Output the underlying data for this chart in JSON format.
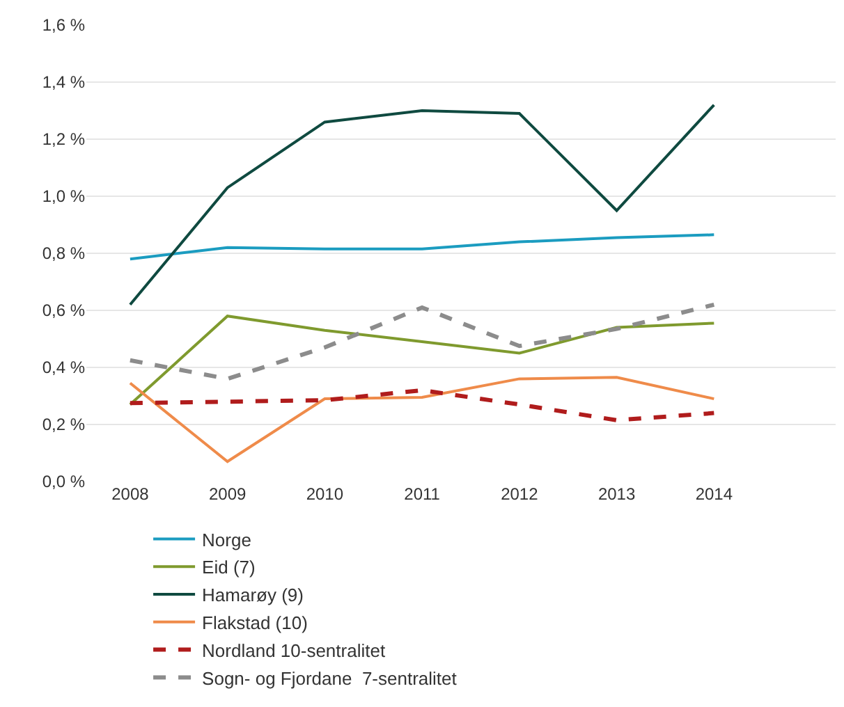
{
  "chart_data": {
    "type": "line",
    "x": [
      2008,
      2009,
      2010,
      2011,
      2012,
      2013,
      2014
    ],
    "xlim": [
      2007.55,
      2015.25
    ],
    "xticks": [
      2008,
      2009,
      2010,
      2011,
      2012,
      2013,
      2014
    ],
    "ylim": [
      0,
      1.6
    ],
    "yticks": [
      {
        "value": 0,
        "label": "0,0 %"
      },
      {
        "value": 0.2,
        "label": "0,2 %"
      },
      {
        "value": 0.4,
        "label": "0,4 %"
      },
      {
        "value": 0.6,
        "label": "0,6 %"
      },
      {
        "value": 0.8,
        "label": "0,8 %"
      },
      {
        "value": 1.0,
        "label": "1,0 %"
      },
      {
        "value": 1.2,
        "label": "1,2 %"
      },
      {
        "value": 1.4,
        "label": "1,4 %"
      },
      {
        "value": 1.6,
        "label": "1,6 %"
      }
    ],
    "grid": "y",
    "legend": "bottom",
    "marker": "none",
    "series": [
      {
        "name": "Norge",
        "color": "#1b9cc0",
        "line_style": "solid",
        "values": [
          0.78,
          0.82,
          0.815,
          0.815,
          0.84,
          0.855,
          0.865
        ]
      },
      {
        "name": "Eid (7)",
        "color": "#7f9a2e",
        "line_style": "solid",
        "values": [
          0.27,
          0.58,
          0.53,
          0.49,
          0.45,
          0.54,
          0.555
        ]
      },
      {
        "name": "Hamarøy (9)",
        "color": "#0f4a40",
        "line_style": "solid",
        "values": [
          0.62,
          1.03,
          1.26,
          1.3,
          1.29,
          0.95,
          1.32
        ]
      },
      {
        "name": "Flakstad (10)",
        "color": "#ef8b4a",
        "line_style": "solid",
        "values": [
          0.345,
          0.07,
          0.29,
          0.295,
          0.36,
          0.365,
          0.29
        ]
      },
      {
        "name": "Nordland 10-sentralitet",
        "color": "#b01c1c",
        "line_style": "dashed",
        "values": [
          0.275,
          0.28,
          0.285,
          0.32,
          0.27,
          0.215,
          0.24
        ]
      },
      {
        "name": "Sogn- og Fjordane  7-sentralitet",
        "color": "#8c8c8c",
        "line_style": "dashed",
        "values": [
          0.425,
          0.36,
          0.47,
          0.61,
          0.475,
          0.535,
          0.62
        ]
      }
    ]
  }
}
